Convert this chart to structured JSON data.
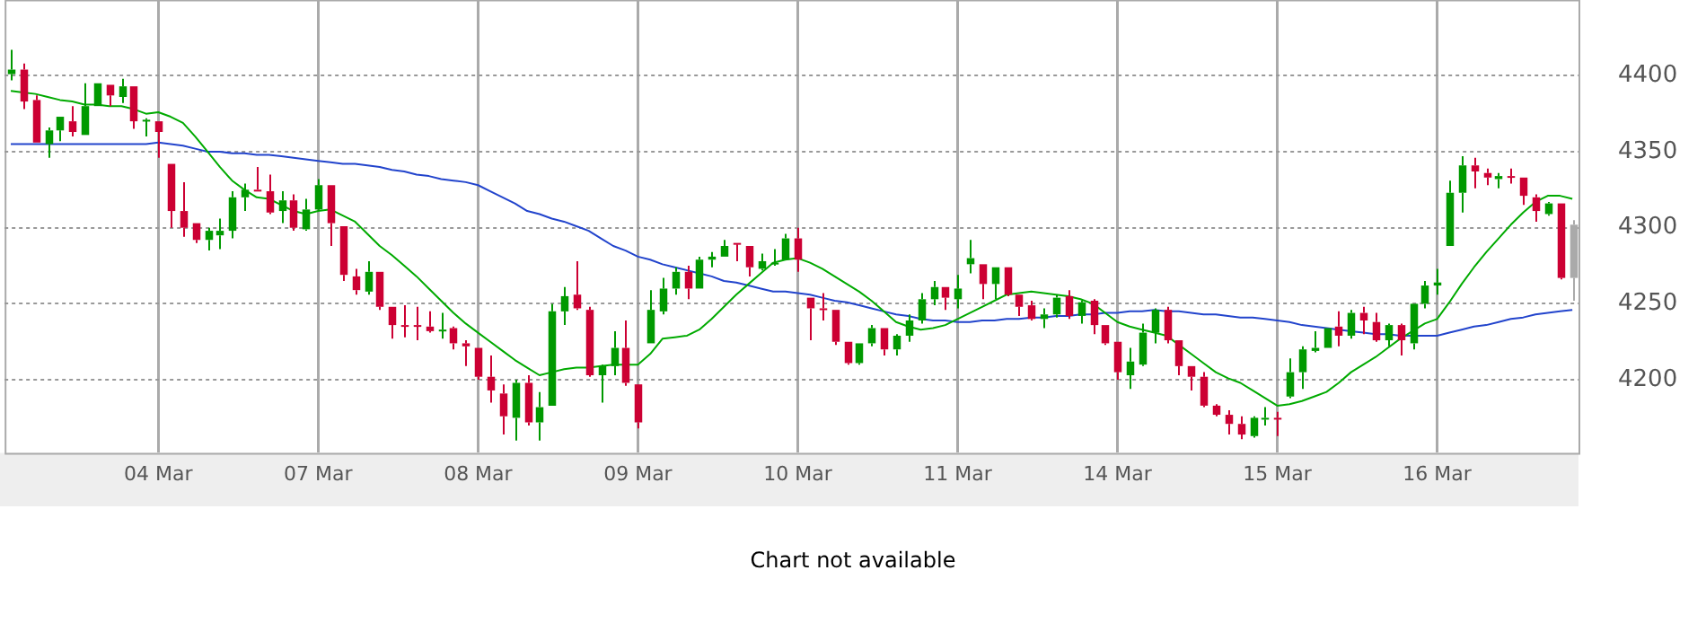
{
  "chart_data": {
    "type": "candlestick",
    "categories": [
      null,
      null,
      null,
      null,
      null,
      null,
      null,
      null,
      null,
      null,
      null,
      null,
      "04 Mar",
      null,
      null,
      null,
      null,
      null,
      null,
      null,
      null,
      null,
      null,
      null,
      null,
      "07 Mar",
      null,
      null,
      null,
      null,
      null,
      null,
      null,
      null,
      null,
      null,
      null,
      null,
      "08 Mar",
      null,
      null,
      null,
      null,
      null,
      null,
      null,
      null,
      null,
      null,
      null,
      null,
      "09 Mar",
      null,
      null,
      null,
      null,
      null,
      null,
      null,
      null,
      null,
      null,
      null,
      null,
      "10 Mar",
      null,
      null,
      null,
      null,
      null,
      null,
      null,
      null,
      null,
      null,
      null,
      null,
      "11 Mar",
      null,
      null,
      null,
      null,
      null,
      null,
      null,
      null,
      null,
      null,
      null,
      null,
      "14 Mar",
      null,
      null,
      null,
      null,
      null,
      null,
      null,
      null,
      null,
      null,
      null,
      null,
      "15 Mar",
      null,
      null,
      null,
      null,
      null,
      null,
      null,
      null,
      null,
      null,
      null,
      null,
      "16 Mar",
      null,
      null,
      null,
      null,
      null,
      null,
      null,
      null,
      null,
      null,
      null
    ],
    "ohlc": [
      [
        4401,
        4417,
        4397,
        4404
      ],
      [
        4404,
        4408,
        4378,
        4383
      ],
      [
        4384,
        4387,
        4356,
        4356
      ],
      [
        4355,
        4366,
        4346,
        4364
      ],
      [
        4364,
        4373,
        4357,
        4373
      ],
      [
        4370,
        4380,
        4360,
        4363
      ],
      [
        4361,
        4395,
        4361,
        4380
      ],
      [
        4380,
        4395,
        4380,
        4395
      ],
      [
        4394,
        4394,
        4380,
        4387
      ],
      [
        4386,
        4398,
        4382,
        4393
      ],
      [
        4393,
        4393,
        4365,
        4370
      ],
      [
        4370,
        4372,
        4360,
        4371
      ],
      [
        4370,
        4370,
        4346,
        4363
      ],
      [
        4342,
        4342,
        4300,
        4311
      ],
      [
        4311,
        4330,
        4294,
        4300
      ],
      [
        4303,
        4303,
        4290,
        4292
      ],
      [
        4292,
        4300,
        4285,
        4298
      ],
      [
        4295,
        4306,
        4286,
        4298
      ],
      [
        4298,
        4324,
        4293,
        4320
      ],
      [
        4320,
        4329,
        4311,
        4325
      ],
      [
        4325,
        4340,
        4324,
        4324
      ],
      [
        4324,
        4335,
        4309,
        4310
      ],
      [
        4311,
        4324,
        4303,
        4318
      ],
      [
        4318,
        4322,
        4298,
        4300
      ],
      [
        4299,
        4319,
        4298,
        4312
      ],
      [
        4312,
        4332,
        4311,
        4328
      ],
      [
        4328,
        4328,
        4288,
        4303
      ],
      [
        4301,
        4301,
        4265,
        4269
      ],
      [
        4268,
        4273,
        4256,
        4259
      ],
      [
        4258,
        4278,
        4256,
        4271
      ],
      [
        4271,
        4271,
        4246,
        4248
      ],
      [
        4248,
        4248,
        4227,
        4236
      ],
      [
        4236,
        4249,
        4228,
        4235
      ],
      [
        4236,
        4248,
        4226,
        4235
      ],
      [
        4235,
        4245,
        4231,
        4232
      ],
      [
        4232,
        4244,
        4227,
        4233
      ],
      [
        4234,
        4235,
        4220,
        4224
      ],
      [
        4224,
        4226,
        4209,
        4222
      ],
      [
        4221,
        4221,
        4200,
        4202
      ],
      [
        4202,
        4216,
        4185,
        4193
      ],
      [
        4191,
        4197,
        4164,
        4176
      ],
      [
        4175,
        4200,
        4160,
        4198
      ],
      [
        4198,
        4203,
        4170,
        4172
      ],
      [
        4172,
        4192,
        4160,
        4182
      ],
      [
        4183,
        4250,
        4183,
        4245
      ],
      [
        4245,
        4261,
        4236,
        4255
      ],
      [
        4256,
        4278,
        4246,
        4247
      ],
      [
        4246,
        4248,
        4202,
        4203
      ],
      [
        4203,
        4210,
        4185,
        4209
      ],
      [
        4209,
        4232,
        4203,
        4221
      ],
      [
        4221,
        4239,
        4196,
        4198
      ],
      [
        4197,
        4197,
        4168,
        4172
      ],
      [
        4224,
        4259,
        4224,
        4246
      ],
      [
        4245,
        4267,
        4243,
        4260
      ],
      [
        4260,
        4274,
        4256,
        4271
      ],
      [
        4271,
        4275,
        4253,
        4260
      ],
      [
        4260,
        4281,
        4260,
        4279
      ],
      [
        4279,
        4284,
        4274,
        4281
      ],
      [
        4281,
        4292,
        4281,
        4288
      ],
      [
        4290,
        4290,
        4278,
        4289
      ],
      [
        4288,
        4288,
        4268,
        4274
      ],
      [
        4273,
        4283,
        4272,
        4278
      ],
      [
        4276,
        4286,
        4275,
        4277
      ],
      [
        4279,
        4296,
        4279,
        4293
      ],
      [
        4293,
        4300,
        4271,
        4279
      ],
      [
        4254,
        4254,
        4226,
        4247
      ],
      [
        4247,
        4257,
        4239,
        4246
      ],
      [
        4246,
        4246,
        4223,
        4225
      ],
      [
        4225,
        4225,
        4210,
        4211
      ],
      [
        4211,
        4224,
        4210,
        4224
      ],
      [
        4224,
        4236,
        4222,
        4234
      ],
      [
        4234,
        4234,
        4216,
        4220
      ],
      [
        4220,
        4230,
        4216,
        4229
      ],
      [
        4229,
        4243,
        4225,
        4239
      ],
      [
        4239,
        4257,
        4237,
        4253
      ],
      [
        4253,
        4265,
        4249,
        4261
      ],
      [
        4261,
        4261,
        4246,
        4254
      ],
      [
        4253,
        4269,
        4247,
        4260
      ],
      [
        4276,
        4292,
        4270,
        4280
      ],
      [
        4276,
        4276,
        4253,
        4263
      ],
      [
        4263,
        4274,
        4253,
        4274
      ],
      [
        4274,
        4274,
        4255,
        4256
      ],
      [
        4256,
        4256,
        4242,
        4248
      ],
      [
        4249,
        4252,
        4239,
        4240
      ],
      [
        4240,
        4247,
        4234,
        4243
      ],
      [
        4243,
        4256,
        4241,
        4254
      ],
      [
        4255,
        4259,
        4240,
        4242
      ],
      [
        4242,
        4252,
        4237,
        4251
      ],
      [
        4252,
        4253,
        4230,
        4236
      ],
      [
        4236,
        4236,
        4223,
        4224
      ],
      [
        4225,
        4225,
        4200,
        4205
      ],
      [
        4203,
        4221,
        4194,
        4212
      ],
      [
        4210,
        4237,
        4209,
        4231
      ],
      [
        4231,
        4247,
        4224,
        4246
      ],
      [
        4246,
        4248,
        4224,
        4226
      ],
      [
        4226,
        4226,
        4203,
        4209
      ],
      [
        4209,
        4209,
        4193,
        4202
      ],
      [
        4202,
        4205,
        4182,
        4183
      ],
      [
        4183,
        4184,
        4176,
        4177
      ],
      [
        4177,
        4180,
        4164,
        4171
      ],
      [
        4171,
        4176,
        4161,
        4164
      ],
      [
        4163,
        4176,
        4162,
        4175
      ],
      [
        4174,
        4182,
        4170,
        4175
      ],
      [
        4175,
        4179,
        4163,
        4174
      ],
      [
        4189,
        4214,
        4188,
        4205
      ],
      [
        4205,
        4222,
        4194,
        4220
      ],
      [
        4219,
        4232,
        4218,
        4221
      ],
      [
        4221,
        4234,
        4221,
        4234
      ],
      [
        4235,
        4245,
        4222,
        4229
      ],
      [
        4229,
        4246,
        4227,
        4244
      ],
      [
        4244,
        4248,
        4230,
        4239
      ],
      [
        4238,
        4244,
        4225,
        4226
      ],
      [
        4226,
        4237,
        4222,
        4236
      ],
      [
        4236,
        4237,
        4216,
        4226
      ],
      [
        4224,
        4250,
        4220,
        4250
      ],
      [
        4250,
        4265,
        4247,
        4262
      ],
      [
        4262,
        4273,
        4256,
        4264
      ],
      [
        4288,
        4331,
        4288,
        4323
      ],
      [
        4323,
        4347,
        4310,
        4341
      ],
      [
        4341,
        4346,
        4326,
        4337
      ],
      [
        4336,
        4339,
        4328,
        4333
      ],
      [
        4332,
        4336,
        4326,
        4334
      ],
      [
        4334,
        4339,
        4329,
        4333
      ],
      [
        4333,
        4333,
        4315,
        4321
      ],
      [
        4320,
        4322,
        4304,
        4311
      ],
      [
        4309,
        4317,
        4308,
        4316
      ],
      [
        4316,
        4316,
        4266,
        4267
      ],
      [
        4267,
        4305,
        4252,
        4302
      ]
    ],
    "colors": [
      "#009900",
      "#cc0033",
      "#cc0033",
      "#009900",
      "#009900",
      "#cc0033",
      "#009900",
      "#009900",
      "#cc0033",
      "#009900",
      "#cc0033",
      "#009900",
      "#cc0033",
      "#cc0033",
      "#cc0033",
      "#cc0033",
      "#009900",
      "#009900",
      "#009900",
      "#009900",
      "#cc0033",
      "#cc0033",
      "#009900",
      "#cc0033",
      "#009900",
      "#009900",
      "#cc0033",
      "#cc0033",
      "#cc0033",
      "#009900",
      "#cc0033",
      "#cc0033",
      "#cc0033",
      "#cc0033",
      "#cc0033",
      "#009900",
      "#cc0033",
      "#cc0033",
      "#cc0033",
      "#cc0033",
      "#cc0033",
      "#009900",
      "#cc0033",
      "#009900",
      "#009900",
      "#009900",
      "#cc0033",
      "#cc0033",
      "#009900",
      "#009900",
      "#cc0033",
      "#cc0033",
      "#009900",
      "#009900",
      "#009900",
      "#cc0033",
      "#009900",
      "#009900",
      "#009900",
      "#cc0033",
      "#cc0033",
      "#009900",
      "#009900",
      "#009900",
      "#cc0033",
      "#cc0033",
      "#cc0033",
      "#cc0033",
      "#cc0033",
      "#009900",
      "#009900",
      "#cc0033",
      "#009900",
      "#009900",
      "#009900",
      "#009900",
      "#cc0033",
      "#009900",
      "#009900",
      "#cc0033",
      "#009900",
      "#cc0033",
      "#cc0033",
      "#cc0033",
      "#009900",
      "#009900",
      "#cc0033",
      "#009900",
      "#cc0033",
      "#cc0033",
      "#cc0033",
      "#009900",
      "#009900",
      "#009900",
      "#cc0033",
      "#cc0033",
      "#cc0033",
      "#cc0033",
      "#cc0033",
      "#cc0033",
      "#cc0033",
      "#009900",
      "#009900",
      "#cc0033",
      "#009900",
      "#009900",
      "#009900",
      "#009900",
      "#cc0033",
      "#009900",
      "#cc0033",
      "#cc0033",
      "#009900",
      "#cc0033",
      "#009900",
      "#009900",
      "#009900",
      "#009900",
      "#009900",
      "#cc0033",
      "#cc0033",
      "#009900",
      "#cc0033",
      "#cc0033",
      "#cc0033",
      "#009900",
      "#cc0033",
      "#aaaaaa"
    ],
    "series": [
      {
        "type": "line",
        "color": "#00aa00",
        "values": [
          4390,
          4389,
          4388,
          4386,
          4384,
          4383,
          4381,
          4381,
          4380,
          4380,
          4378,
          4375,
          4376,
          4373,
          4369,
          4360,
          4350,
          4340,
          4331,
          4325,
          4320,
          4319,
          4315,
          4311,
          4309,
          4311,
          4312,
          4308,
          4304,
          4296,
          4288,
          4282,
          4275,
          4268,
          4260,
          4252,
          4244,
          4237,
          4231,
          4225,
          4219,
          4213,
          4208,
          4203,
          4205,
          4207,
          4208,
          4208,
          4209,
          4210,
          4210,
          4210,
          4217,
          4227,
          4228,
          4229,
          4233,
          4240,
          4248,
          4256,
          4263,
          4270,
          4277,
          4279,
          4280,
          4277,
          4273,
          4268,
          4263,
          4258,
          4252,
          4245,
          4238,
          4235,
          4233,
          4234,
          4236,
          4240,
          4244,
          4248,
          4252,
          4256,
          4257,
          4258,
          4257,
          4256,
          4255,
          4253,
          4250,
          4244,
          4238,
          4235,
          4233,
          4231,
          4229,
          4223,
          4217,
          4211,
          4205,
          4201,
          4198,
          4193,
          4188,
          4183,
          4184,
          4186,
          4189,
          4192,
          4198,
          4205,
          4210,
          4215,
          4221,
          4227,
          4232,
          4237,
          4240,
          4251,
          4263,
          4274,
          4284,
          4293,
          4302,
          4310,
          4317,
          4321,
          4321,
          4319
        ]
      },
      {
        "type": "line",
        "color": "#2244cc",
        "values": [
          4355,
          4355,
          4355,
          4355,
          4355,
          4355,
          4355,
          4355,
          4355,
          4355,
          4355,
          4355,
          4356,
          4355,
          4354,
          4352,
          4350,
          4350,
          4349,
          4349,
          4348,
          4348,
          4347,
          4346,
          4345,
          4344,
          4343,
          4342,
          4342,
          4341,
          4340,
          4338,
          4337,
          4335,
          4334,
          4332,
          4331,
          4330,
          4328,
          4324,
          4320,
          4316,
          4311,
          4309,
          4306,
          4304,
          4301,
          4298,
          4293,
          4288,
          4285,
          4281,
          4279,
          4276,
          4274,
          4272,
          4270,
          4268,
          4265,
          4264,
          4262,
          4260,
          4258,
          4258,
          4257,
          4256,
          4254,
          4252,
          4251,
          4249,
          4247,
          4245,
          4243,
          4242,
          4240,
          4239,
          4239,
          4238,
          4238,
          4239,
          4239,
          4240,
          4240,
          4241,
          4241,
          4242,
          4242,
          4243,
          4243,
          4244,
          4244,
          4245,
          4245,
          4246,
          4245,
          4245,
          4244,
          4243,
          4243,
          4242,
          4241,
          4241,
          4240,
          4239,
          4238,
          4236,
          4235,
          4234,
          4233,
          4232,
          4231,
          4230,
          4230,
          4229,
          4229,
          4229,
          4229,
          4231,
          4233,
          4235,
          4236,
          4238,
          4240,
          4241,
          4243,
          4244,
          4245,
          4246
        ]
      }
    ],
    "ylim": [
      4152,
      4450
    ],
    "yticks": [
      4200,
      4250,
      4300,
      4350,
      4400
    ],
    "grid": true,
    "legend": false,
    "marker": "none",
    "annotations": [
      "Chart not available"
    ]
  }
}
